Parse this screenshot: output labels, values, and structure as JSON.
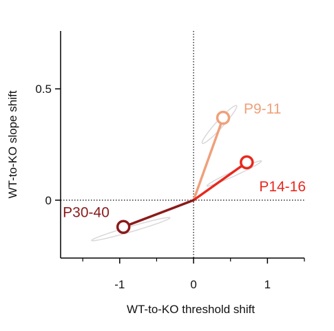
{
  "chart_data": {
    "type": "scatter",
    "title": "",
    "xlabel": "WT-to-KO threshold shift",
    "ylabel": "WT-to-KO slope shift",
    "xlim": [
      -1.8,
      1.5
    ],
    "ylim": [
      -0.26,
      0.76
    ],
    "xticks": [
      -1,
      0,
      1
    ],
    "xtick_labels": [
      "-1",
      "0",
      "1"
    ],
    "xminor_ticks": [
      -1.5,
      -0.5,
      0.5,
      1.5
    ],
    "yticks": [
      0,
      0.5
    ],
    "ytick_labels": [
      "0",
      "0.5"
    ],
    "reference_lines": {
      "x": 0,
      "y": 0,
      "style": "dotted"
    },
    "grid": false,
    "origin": [
      0,
      0
    ],
    "series": [
      {
        "name": "P9-11",
        "x": 0.4,
        "y": 0.37,
        "color": "#f0a07a",
        "label_pos": "right",
        "ellipse": {
          "center": [
            0.35,
            0.34
          ],
          "semi_major": 0.52,
          "semi_minor": 0.06,
          "angle_deg": 64
        }
      },
      {
        "name": "P14-16",
        "x": 0.72,
        "y": 0.17,
        "color": "#e8281e",
        "label_pos": "below-right",
        "ellipse": {
          "center": [
            0.55,
            0.12
          ],
          "semi_major": 0.48,
          "semi_minor": 0.05,
          "angle_deg": 40
        }
      },
      {
        "name": "P30-40",
        "x": -0.95,
        "y": -0.12,
        "color": "#8b1a1a",
        "label_pos": "above-left",
        "ellipse": {
          "center": [
            -0.85,
            -0.13
          ],
          "semi_major": 0.6,
          "semi_minor": 0.06,
          "angle_deg": 28
        }
      }
    ],
    "ellipse_color": "#d8d8d8"
  }
}
